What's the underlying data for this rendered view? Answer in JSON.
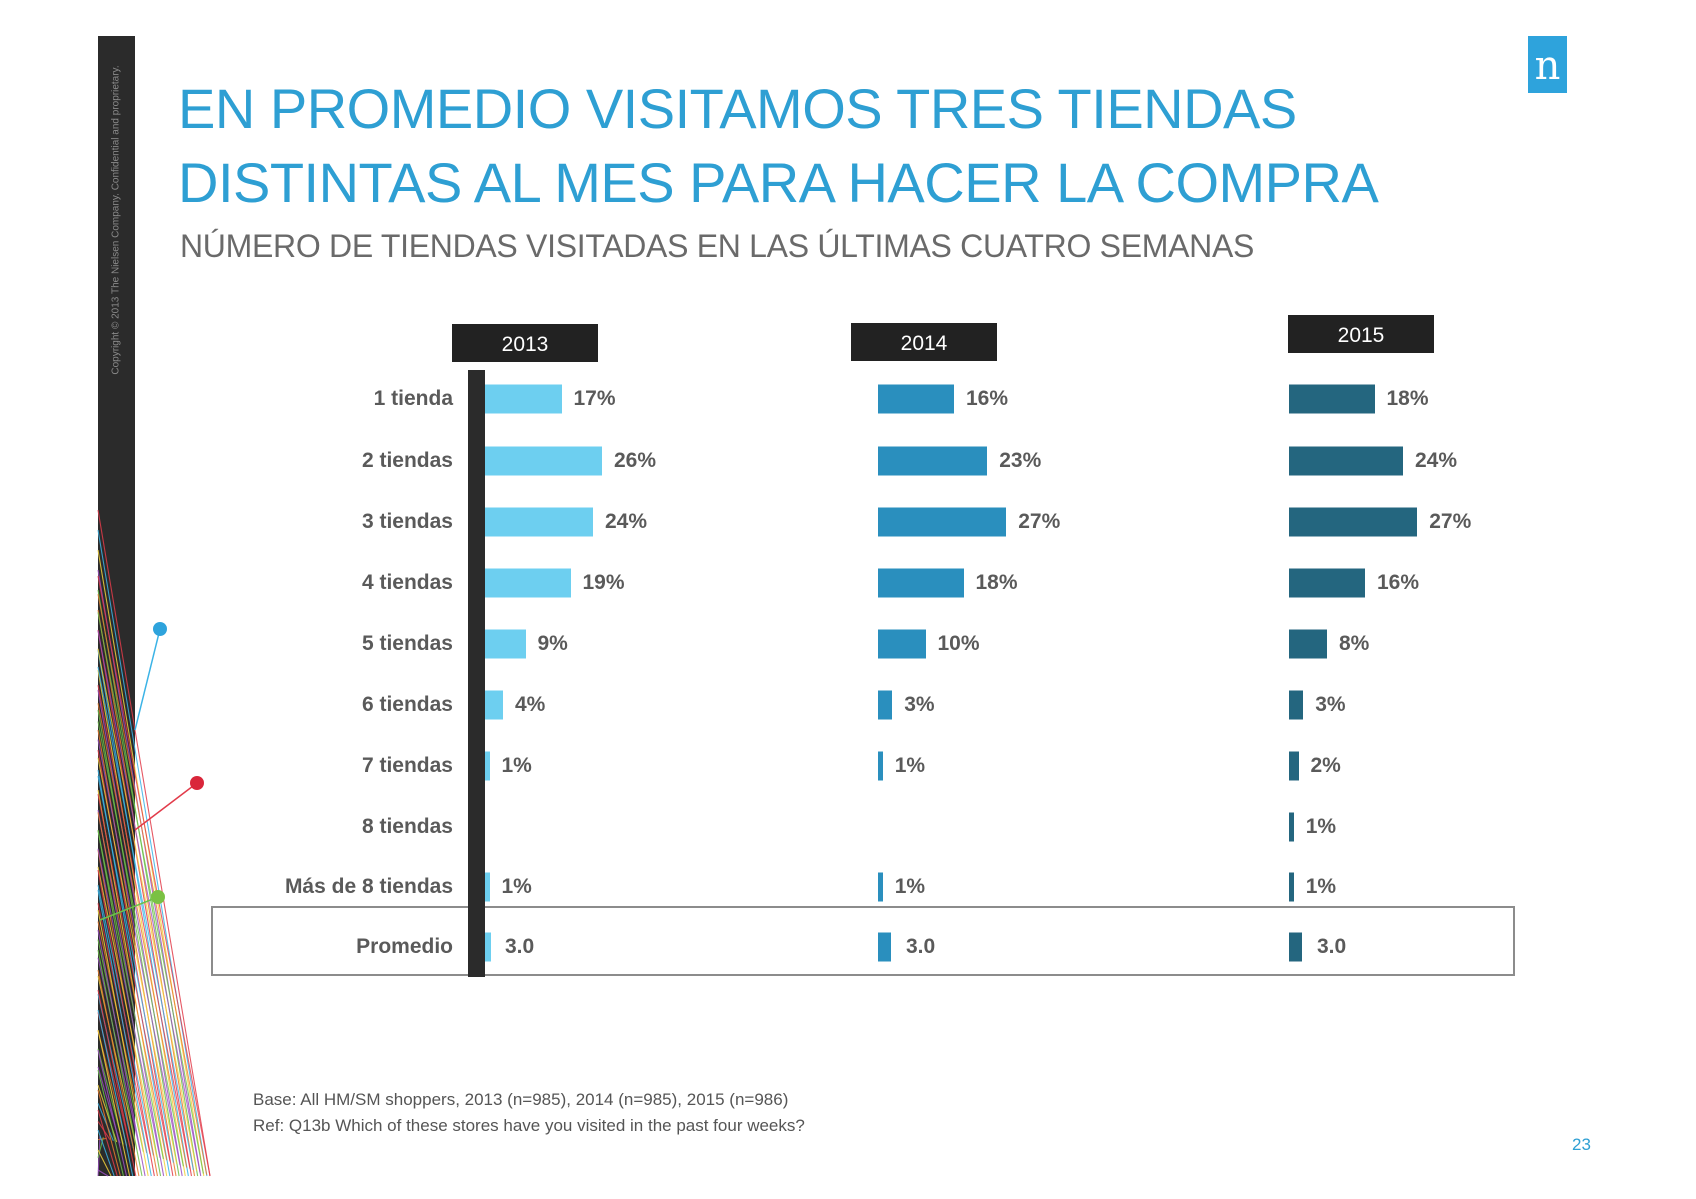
{
  "header": {
    "title_line1": "EN PROMEDIO VISITAMOS TRES TIENDAS",
    "title_line2": "DISTINTAS AL MES PARA HACER LA COMPRA",
    "subtitle": "NÚMERO DE TIENDAS VISITADAS EN LAS ÚLTIMAS CUATRO SEMANAS",
    "logo_letter": "n",
    "copyright": "Copyright © 2013 The Nielsen Company. Confidential and proprietary."
  },
  "colors": {
    "title": "#2e9fd3",
    "2013": "#6dcff0",
    "2014": "#2a8fbe",
    "2015": "#24667f"
  },
  "chart_data": {
    "type": "bar",
    "orientation": "horizontal",
    "categories": [
      "1 tienda",
      "2 tiendas",
      "3 tiendas",
      "4 tiendas",
      "5 tiendas",
      "6 tiendas",
      "7 tiendas",
      "8 tiendas",
      "Más de 8 tiendas"
    ],
    "series": [
      {
        "name": "2013",
        "values": [
          17,
          26,
          24,
          19,
          9,
          4,
          1,
          null,
          1
        ],
        "labels": [
          "17%",
          "26%",
          "24%",
          "19%",
          "9%",
          "4%",
          "1%",
          "",
          "1%"
        ],
        "promedio": "3.0"
      },
      {
        "name": "2014",
        "values": [
          16,
          23,
          27,
          18,
          10,
          3,
          1,
          null,
          1
        ],
        "labels": [
          "16%",
          "23%",
          "27%",
          "18%",
          "10%",
          "3%",
          "1%",
          "",
          "1%"
        ],
        "promedio": "3.0"
      },
      {
        "name": "2015",
        "values": [
          18,
          24,
          27,
          16,
          8,
          3,
          2,
          1,
          1
        ],
        "labels": [
          "18%",
          "24%",
          "27%",
          "16%",
          "8%",
          "3%",
          "2%",
          "1%",
          "1%"
        ],
        "promedio": "3.0"
      }
    ],
    "promedio_label": "Promedio",
    "unit": "%",
    "grid": false
  },
  "footer": {
    "base": "Base: All HM/SM shoppers, 2013 (n=985), 2014 (n=985), 2015 (n=986)",
    "ref": "Ref:  Q13b Which of these stores have you visited in the past four weeks?",
    "page_number": "23"
  }
}
